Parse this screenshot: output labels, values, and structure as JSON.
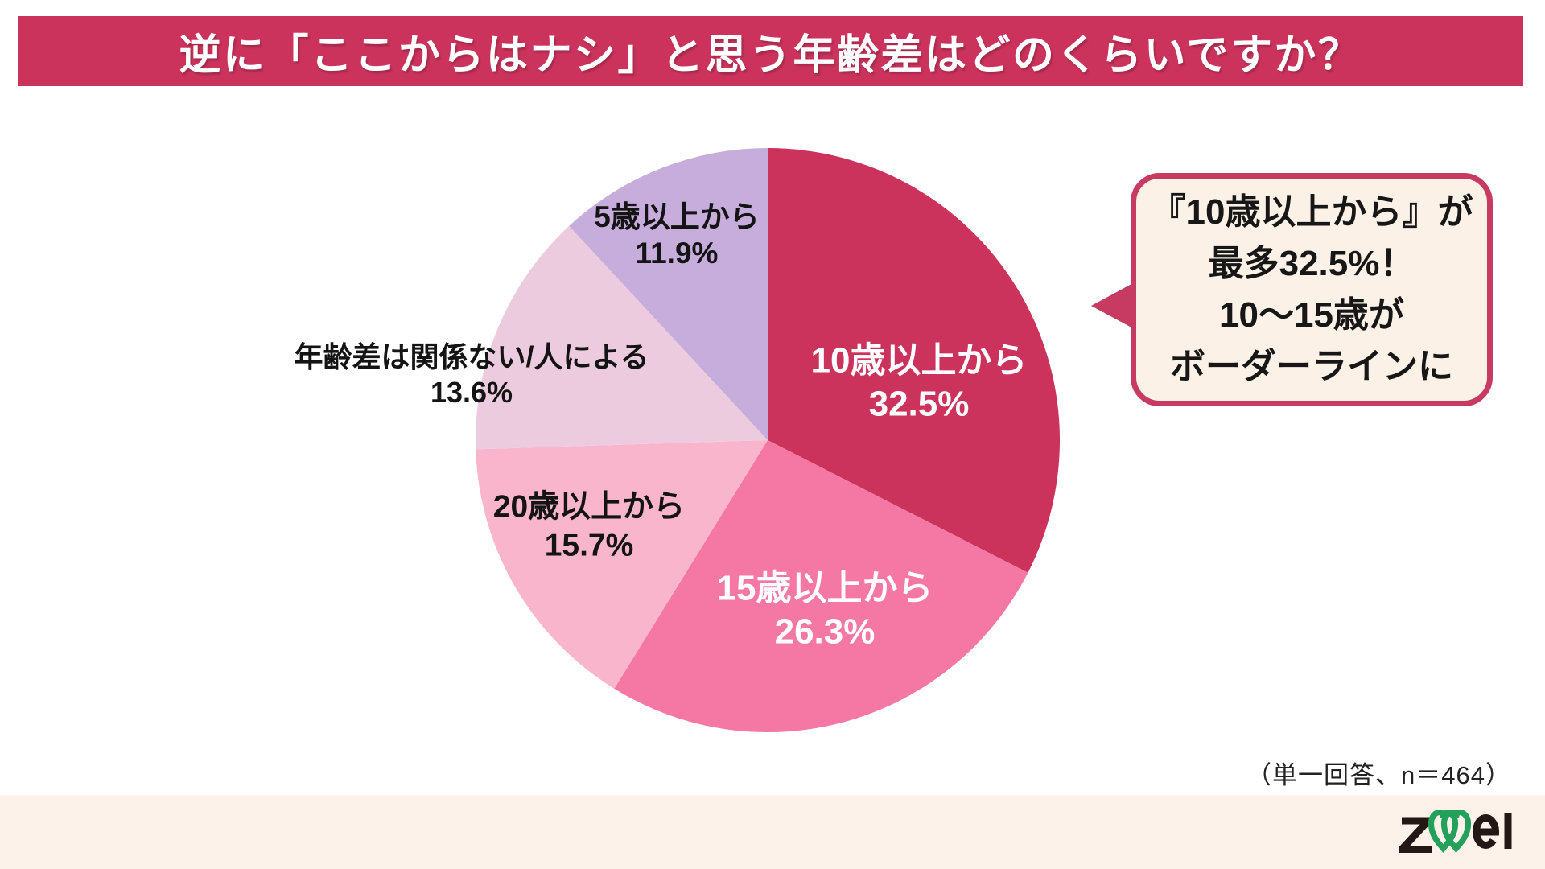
{
  "header": {
    "title": "逆に「ここからはナシ」と思う年齢差はどのくらいですか？",
    "bg_color": "#cb335c",
    "text_color": "#ffffff"
  },
  "chart_data": {
    "type": "pie",
    "title": "逆に「ここからはナシ」と思う年齢差はどのくらいですか？",
    "start_angle_deg": 0,
    "direction": "clockwise",
    "legend": "none",
    "slices": [
      {
        "label": "10歳以上から",
        "value": 32.5,
        "color": "#cb335c",
        "label_color": "#ffffff"
      },
      {
        "label": "15歳以上から",
        "value": 26.3,
        "color": "#f478a3",
        "label_color": "#ffffff"
      },
      {
        "label": "20歳以上から",
        "value": 15.7,
        "color": "#f9b5cb",
        "label_color": "#141414"
      },
      {
        "label": "年齢差は関係ない/人による",
        "value": 13.6,
        "color": "#edcbde",
        "label_color": "#141414"
      },
      {
        "label": "5歳以上から",
        "value": 11.9,
        "color": "#c6addb",
        "label_color": "#141414"
      }
    ]
  },
  "callout": {
    "lines": [
      "『10歳以上から』が",
      "最多32.5%！",
      "10〜15歳が",
      "ボーダーラインに"
    ],
    "bg_color": "#fbf1e6",
    "border_color": "#c73a62",
    "text_color": "#171717"
  },
  "footnote": "（単一回答、n＝464）",
  "footer": {
    "bg_color": "#fdf2ea",
    "logo_text": "zwei",
    "logo_letter_color": "#231815",
    "logo_heart_color": "#23a05a"
  }
}
